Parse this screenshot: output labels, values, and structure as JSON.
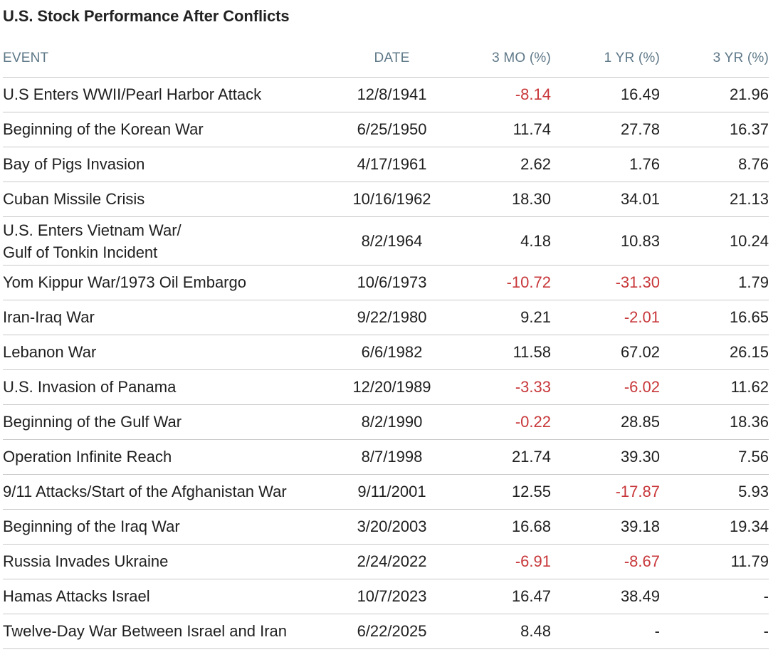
{
  "chart_data": {
    "type": "table",
    "title": "U.S. Stock Performance After Conflicts",
    "columns": [
      "EVENT",
      "DATE",
      "3 MO (%)",
      "1 YR (%)",
      "3 YR (%)"
    ],
    "rows": [
      {
        "event": "U.S Enters WWII/Pearl Harbor Attack",
        "date": "12/8/1941",
        "mo3": "-8.14",
        "yr1": "16.49",
        "yr3": "21.96"
      },
      {
        "event": "Beginning of the Korean War",
        "date": "6/25/1950",
        "mo3": "11.74",
        "yr1": "27.78",
        "yr3": "16.37"
      },
      {
        "event": "Bay of Pigs Invasion",
        "date": "4/17/1961",
        "mo3": "2.62",
        "yr1": "1.76",
        "yr3": "8.76"
      },
      {
        "event": "Cuban Missile Crisis",
        "date": "10/16/1962",
        "mo3": "18.30",
        "yr1": "34.01",
        "yr3": "21.13"
      },
      {
        "event": "U.S. Enters Vietnam War/ Gulf of Tonkin Incident",
        "event_line1": "U.S. Enters Vietnam War/",
        "event_line2": "Gulf of Tonkin Incident",
        "date": "8/2/1964",
        "mo3": "4.18",
        "yr1": "10.83",
        "yr3": "10.24"
      },
      {
        "event": "Yom Kippur War/1973 Oil Embargo",
        "date": "10/6/1973",
        "mo3": "-10.72",
        "yr1": "-31.30",
        "yr3": "1.79"
      },
      {
        "event": "Iran-Iraq War",
        "date": "9/22/1980",
        "mo3": "9.21",
        "yr1": "-2.01",
        "yr3": "16.65"
      },
      {
        "event": "Lebanon War",
        "date": "6/6/1982",
        "mo3": "11.58",
        "yr1": "67.02",
        "yr3": "26.15"
      },
      {
        "event": "U.S. Invasion of Panama",
        "date": "12/20/1989",
        "mo3": "-3.33",
        "yr1": "-6.02",
        "yr3": "11.62"
      },
      {
        "event": "Beginning of the Gulf War",
        "date": "8/2/1990",
        "mo3": "-0.22",
        "yr1": "28.85",
        "yr3": "18.36"
      },
      {
        "event": "Operation Infinite Reach",
        "date": "8/7/1998",
        "mo3": "21.74",
        "yr1": "39.30",
        "yr3": "7.56"
      },
      {
        "event": "9/11 Attacks/Start of the Afghanistan War",
        "date": "9/11/2001",
        "mo3": "12.55",
        "yr1": "-17.87",
        "yr3": "5.93"
      },
      {
        "event": "Beginning of the Iraq War",
        "date": "3/20/2003",
        "mo3": "16.68",
        "yr1": "39.18",
        "yr3": "19.34"
      },
      {
        "event": "Russia Invades Ukraine",
        "date": "2/24/2022",
        "mo3": "-6.91",
        "yr1": "-8.67",
        "yr3": "11.79"
      },
      {
        "event": "Hamas Attacks Israel",
        "date": "10/7/2023",
        "mo3": "16.47",
        "yr1": "38.49",
        "yr3": "-"
      },
      {
        "event": "Twelve-Day War Between Israel and Iran",
        "date": "6/22/2025",
        "mo3": "8.48",
        "yr1": "-",
        "yr3": "-"
      }
    ],
    "colors": {
      "negative": "#c8373a",
      "header_text": "#5e7888",
      "text": "#1f1f1f",
      "divider": "#c9c9c9"
    }
  }
}
